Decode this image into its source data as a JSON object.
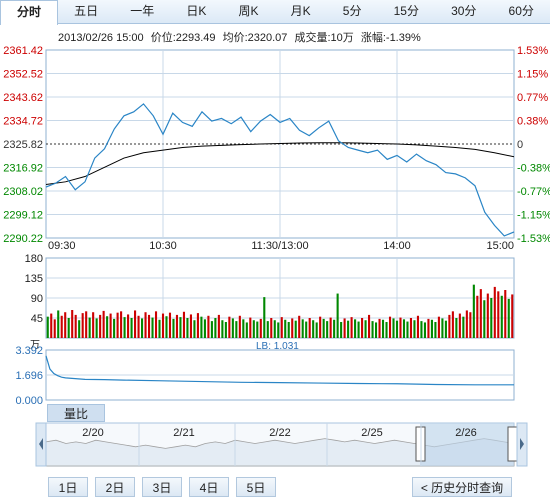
{
  "tabs": [
    "分时",
    "五日",
    "一年",
    "日K",
    "周K",
    "月K",
    "5分",
    "15分",
    "30分",
    "60分"
  ],
  "active_tab": "分时",
  "info": {
    "datetime": "2013/02/26 15:00",
    "price": "价位:2293.49",
    "avg": "均价:2320.07",
    "volume": "成交量:10万",
    "change": "涨幅:-1.39%"
  },
  "colors": {
    "up": "#cc0000",
    "down": "#008800",
    "price_line": "#2a85c6",
    "avg_line": "#000000",
    "grid": "#c8d8e8"
  },
  "chart_data": [
    {
      "type": "line",
      "title": "",
      "x_ticks": [
        "09:30",
        "10:30",
        "11:30/13:00",
        "14:00",
        "15:00"
      ],
      "y_left_ticks": [
        "2361.42",
        "2352.52",
        "2343.62",
        "2334.72",
        "2325.82",
        "2316.92",
        "2308.02",
        "2299.12",
        "2290.22"
      ],
      "y_right_ticks": [
        "1.53%",
        "1.15%",
        "0.77%",
        "0.38%",
        "0",
        "-0.38%",
        "-0.77%",
        "-1.15%",
        "-1.53%"
      ],
      "ylim": [
        2290.22,
        2361.42
      ],
      "prev_close": 2325.82,
      "series": [
        {
          "key": "price",
          "x": [
            0,
            5,
            10,
            15,
            20,
            25,
            30,
            35,
            40,
            45,
            50,
            55,
            60,
            65,
            70,
            75,
            80,
            85,
            90,
            95,
            100,
            105,
            110,
            115,
            120,
            125,
            130,
            135,
            140,
            145,
            150,
            155,
            160,
            165,
            170,
            175,
            180,
            185,
            190,
            195,
            200,
            205,
            210,
            215,
            220,
            225,
            230,
            235,
            240
          ],
          "values": [
            2309.5,
            2311.0,
            2313.5,
            2308.5,
            2311.5,
            2320.5,
            2324.0,
            2331.5,
            2336.5,
            2338.0,
            2341.0,
            2336.5,
            2329.5,
            2337.5,
            2334.0,
            2332.5,
            2338.0,
            2334.5,
            2335.5,
            2333.5,
            2336.0,
            2330.5,
            2334.5,
            2337.0,
            2334.0,
            2335.5,
            2331.0,
            2329.0,
            2332.0,
            2334.5,
            2327.0,
            2324.5,
            2323.5,
            2322.5,
            2323.5,
            2320.0,
            2321.5,
            2319.0,
            2322.0,
            2319.5,
            2318.0,
            2315.0,
            2314.5,
            2313.0,
            2310.0,
            2300.0,
            2295.0,
            2291.0,
            2292.5
          ]
        },
        {
          "key": "avg",
          "x": [
            0,
            10,
            20,
            30,
            40,
            50,
            60,
            70,
            80,
            90,
            100,
            110,
            120,
            130,
            140,
            150,
            160,
            170,
            180,
            190,
            200,
            210,
            220,
            230,
            240
          ],
          "values": [
            2310.5,
            2311.5,
            2313.5,
            2317.0,
            2320.5,
            2322.5,
            2323.5,
            2324.5,
            2325.0,
            2325.3,
            2325.6,
            2325.8,
            2326.0,
            2326.2,
            2326.3,
            2326.3,
            2326.2,
            2326.0,
            2325.8,
            2325.5,
            2325.0,
            2324.5,
            2323.8,
            2322.5,
            2321.0
          ]
        }
      ]
    },
    {
      "type": "bar",
      "title": "",
      "ylabel": "",
      "unit": "万",
      "y_ticks": [
        "180",
        "135",
        "90",
        "45"
      ],
      "ylim": [
        0,
        180
      ],
      "values": [
        48,
        55,
        42,
        62,
        50,
        58,
        45,
        63,
        52,
        40,
        56,
        60,
        46,
        58,
        44,
        52,
        61,
        49,
        55,
        43,
        57,
        60,
        47,
        53,
        45,
        62,
        50,
        44,
        58,
        52,
        46,
        60,
        41,
        55,
        49,
        57,
        43,
        52,
        47,
        59,
        45,
        53,
        40,
        56,
        48,
        42,
        50,
        38,
        45,
        52,
        40,
        36,
        48,
        44,
        38,
        50,
        42,
        35,
        46,
        40,
        37,
        43,
        92,
        38,
        45,
        40,
        35,
        47,
        41,
        36,
        44,
        39,
        50,
        42,
        37,
        45,
        40,
        35,
        48,
        43,
        38,
        46,
        41,
        100,
        36,
        44,
        39,
        47,
        42,
        37,
        45,
        40,
        52,
        38,
        35,
        43,
        41,
        36,
        48,
        44,
        39,
        46,
        42,
        37,
        45,
        40,
        50,
        38,
        35,
        43,
        41,
        36,
        48,
        44,
        39,
        52,
        60,
        45,
        55,
        48,
        62,
        58,
        120,
        95,
        110,
        85,
        100,
        90,
        115,
        105,
        95,
        108,
        88,
        98
      ],
      "colors": [
        "g",
        "r",
        "r",
        "g",
        "r",
        "r",
        "g",
        "r",
        "r",
        "g",
        "r",
        "r",
        "g",
        "r",
        "g",
        "r",
        "r",
        "g",
        "r",
        "g",
        "r",
        "r",
        "g",
        "r",
        "g",
        "r",
        "r",
        "g",
        "r",
        "r",
        "g",
        "r",
        "g",
        "r",
        "g",
        "r",
        "g",
        "r",
        "g",
        "r",
        "g",
        "r",
        "g",
        "r",
        "g",
        "g",
        "r",
        "g",
        "g",
        "r",
        "g",
        "g",
        "r",
        "g",
        "g",
        "r",
        "g",
        "g",
        "r",
        "g",
        "g",
        "r",
        "g",
        "g",
        "r",
        "g",
        "g",
        "r",
        "g",
        "g",
        "r",
        "g",
        "r",
        "g",
        "g",
        "r",
        "g",
        "g",
        "r",
        "g",
        "g",
        "r",
        "g",
        "g",
        "g",
        "r",
        "g",
        "r",
        "g",
        "g",
        "r",
        "g",
        "r",
        "g",
        "g",
        "r",
        "g",
        "g",
        "r",
        "g",
        "g",
        "r",
        "g",
        "g",
        "r",
        "g",
        "r",
        "g",
        "g",
        "r",
        "g",
        "g",
        "r",
        "g",
        "g",
        "r",
        "r",
        "g",
        "r",
        "g",
        "r",
        "r",
        "g",
        "r",
        "r",
        "g",
        "r",
        "g",
        "r",
        "r",
        "g",
        "r",
        "g",
        "r"
      ]
    },
    {
      "type": "line",
      "title": "",
      "y_ticks": [
        "3.392",
        "1.696",
        "0.000"
      ],
      "ylim": [
        0,
        3.392
      ],
      "annotation": "LB: 1.031",
      "tab_label": "量比",
      "x": [
        0,
        2,
        4,
        6,
        8,
        10,
        15,
        20,
        30,
        40,
        60,
        80,
        100,
        120,
        140,
        160,
        180,
        200,
        220,
        240
      ],
      "values": [
        3.0,
        2.1,
        1.8,
        1.65,
        1.55,
        1.5,
        1.45,
        1.4,
        1.38,
        1.35,
        1.3,
        1.25,
        1.2,
        1.18,
        1.15,
        1.12,
        1.1,
        1.05,
        1.03,
        1.031
      ]
    },
    {
      "type": "area",
      "title": "",
      "x_ticks": [
        "2/20",
        "2/21",
        "2/22",
        "2/25",
        "2/26"
      ],
      "values": [
        0.55,
        0.6,
        0.5,
        0.55,
        0.5,
        0.6,
        0.55,
        0.5,
        0.45,
        0.4,
        0.45,
        0.4,
        0.35,
        0.4,
        0.45,
        0.4,
        0.5,
        0.55,
        0.5,
        0.6,
        0.55,
        0.5,
        0.55,
        0.6,
        0.55,
        0.5,
        0.55,
        0.6,
        0.65,
        0.6,
        0.55,
        0.6,
        0.55,
        0.5,
        0.55,
        0.6,
        0.55,
        0.5,
        0.45,
        0.4,
        0.45,
        0.5,
        0.55,
        0.6,
        0.65,
        0.6,
        0.55,
        0.5
      ]
    }
  ],
  "day_buttons": [
    "1日",
    "2日",
    "3日",
    "4日",
    "5日"
  ],
  "history_button": "< 历史分时查询"
}
